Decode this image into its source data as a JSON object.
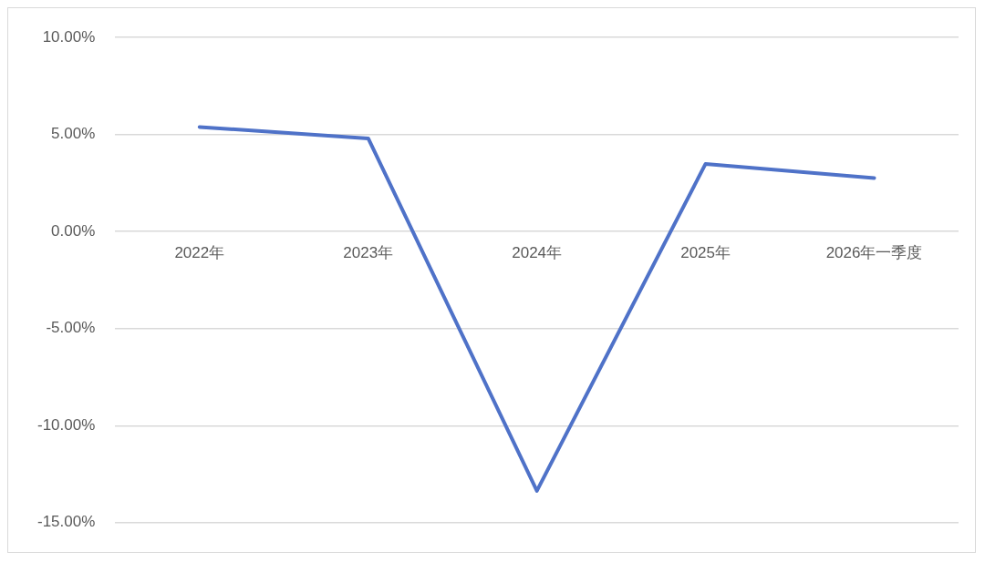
{
  "chart_data": {
    "type": "line",
    "categories": [
      "2022年",
      "2023年",
      "2024年",
      "2025年",
      "2026年一季度"
    ],
    "series": [
      {
        "color": "#4f72c8",
        "values": [
          5.39,
          4.8,
          -13.36,
          3.49,
          2.76
        ]
      }
    ],
    "ylim": [
      -15,
      10
    ],
    "yticks": [
      {
        "value": -15,
        "label": "-15.00%"
      },
      {
        "value": -10,
        "label": "-10.00%"
      },
      {
        "value": -5,
        "label": "-5.00%"
      },
      {
        "value": 0,
        "label": "0.00%"
      },
      {
        "value": 5,
        "label": "5.00%"
      },
      {
        "value": 10,
        "label": "10.00%"
      }
    ],
    "grid": "y",
    "legend": false,
    "marker": "none",
    "line_style": "solid"
  }
}
